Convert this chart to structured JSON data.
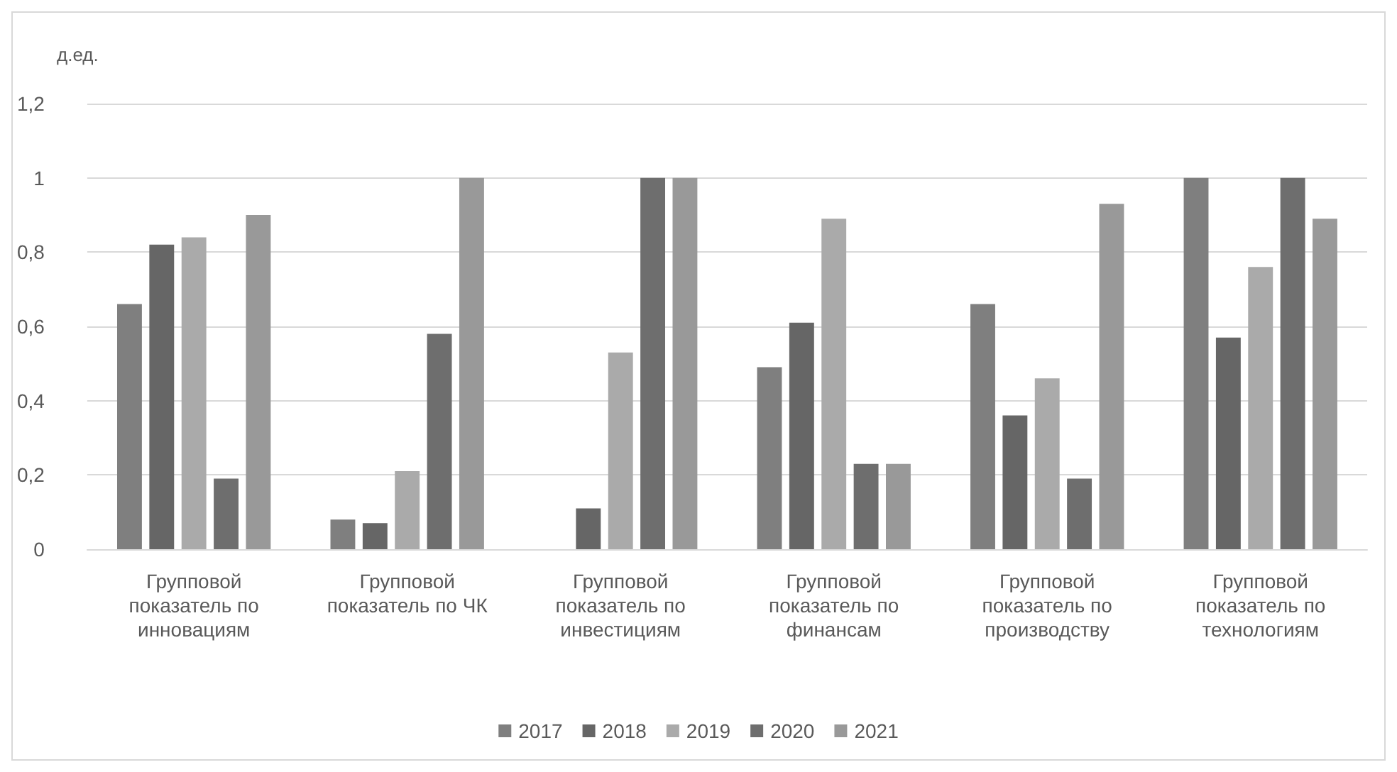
{
  "chart_data": {
    "type": "bar",
    "ylabel": "д.ед.",
    "categories": [
      "Групповой\nпоказатель по\nинновациям",
      "Групповой\nпоказатель по ЧК",
      "Групповой\nпоказатель по\nинвестициям",
      "Групповой\nпоказатель по\nфинансам",
      "Групповой\nпоказатель по\nпроизводству",
      "Групповой\nпоказатель по\nтехнологиям"
    ],
    "series": [
      {
        "name": "2017",
        "color": "#7f7f7f",
        "values": [
          0.66,
          0.08,
          0,
          0.49,
          0.66,
          1
        ]
      },
      {
        "name": "2018",
        "color": "#666666",
        "values": [
          0.82,
          0.07,
          0.11,
          0.61,
          0.36,
          0.57
        ]
      },
      {
        "name": "2019",
        "color": "#aaaaaa",
        "values": [
          0.84,
          0.21,
          0.53,
          0.89,
          0.46,
          0.76
        ]
      },
      {
        "name": "2020",
        "color": "#6e6e6e",
        "values": [
          0.19,
          0.58,
          1,
          0.23,
          0.19,
          1
        ]
      },
      {
        "name": "2021",
        "color": "#999999",
        "values": [
          0.9,
          1,
          1,
          0.23,
          0.93,
          0.89
        ]
      }
    ],
    "ylim": [
      0,
      1.2
    ],
    "yticks": [
      0,
      {
        "value": 0.2,
        "label": "0,2"
      },
      {
        "value": 0.4,
        "label": "0,4"
      },
      {
        "value": 0.6,
        "label": "0,6"
      },
      {
        "value": 0.8,
        "label": "0,8"
      },
      1,
      {
        "value": 1.2,
        "label": "1,2"
      }
    ],
    "grid": "y",
    "legend": "bottom"
  }
}
